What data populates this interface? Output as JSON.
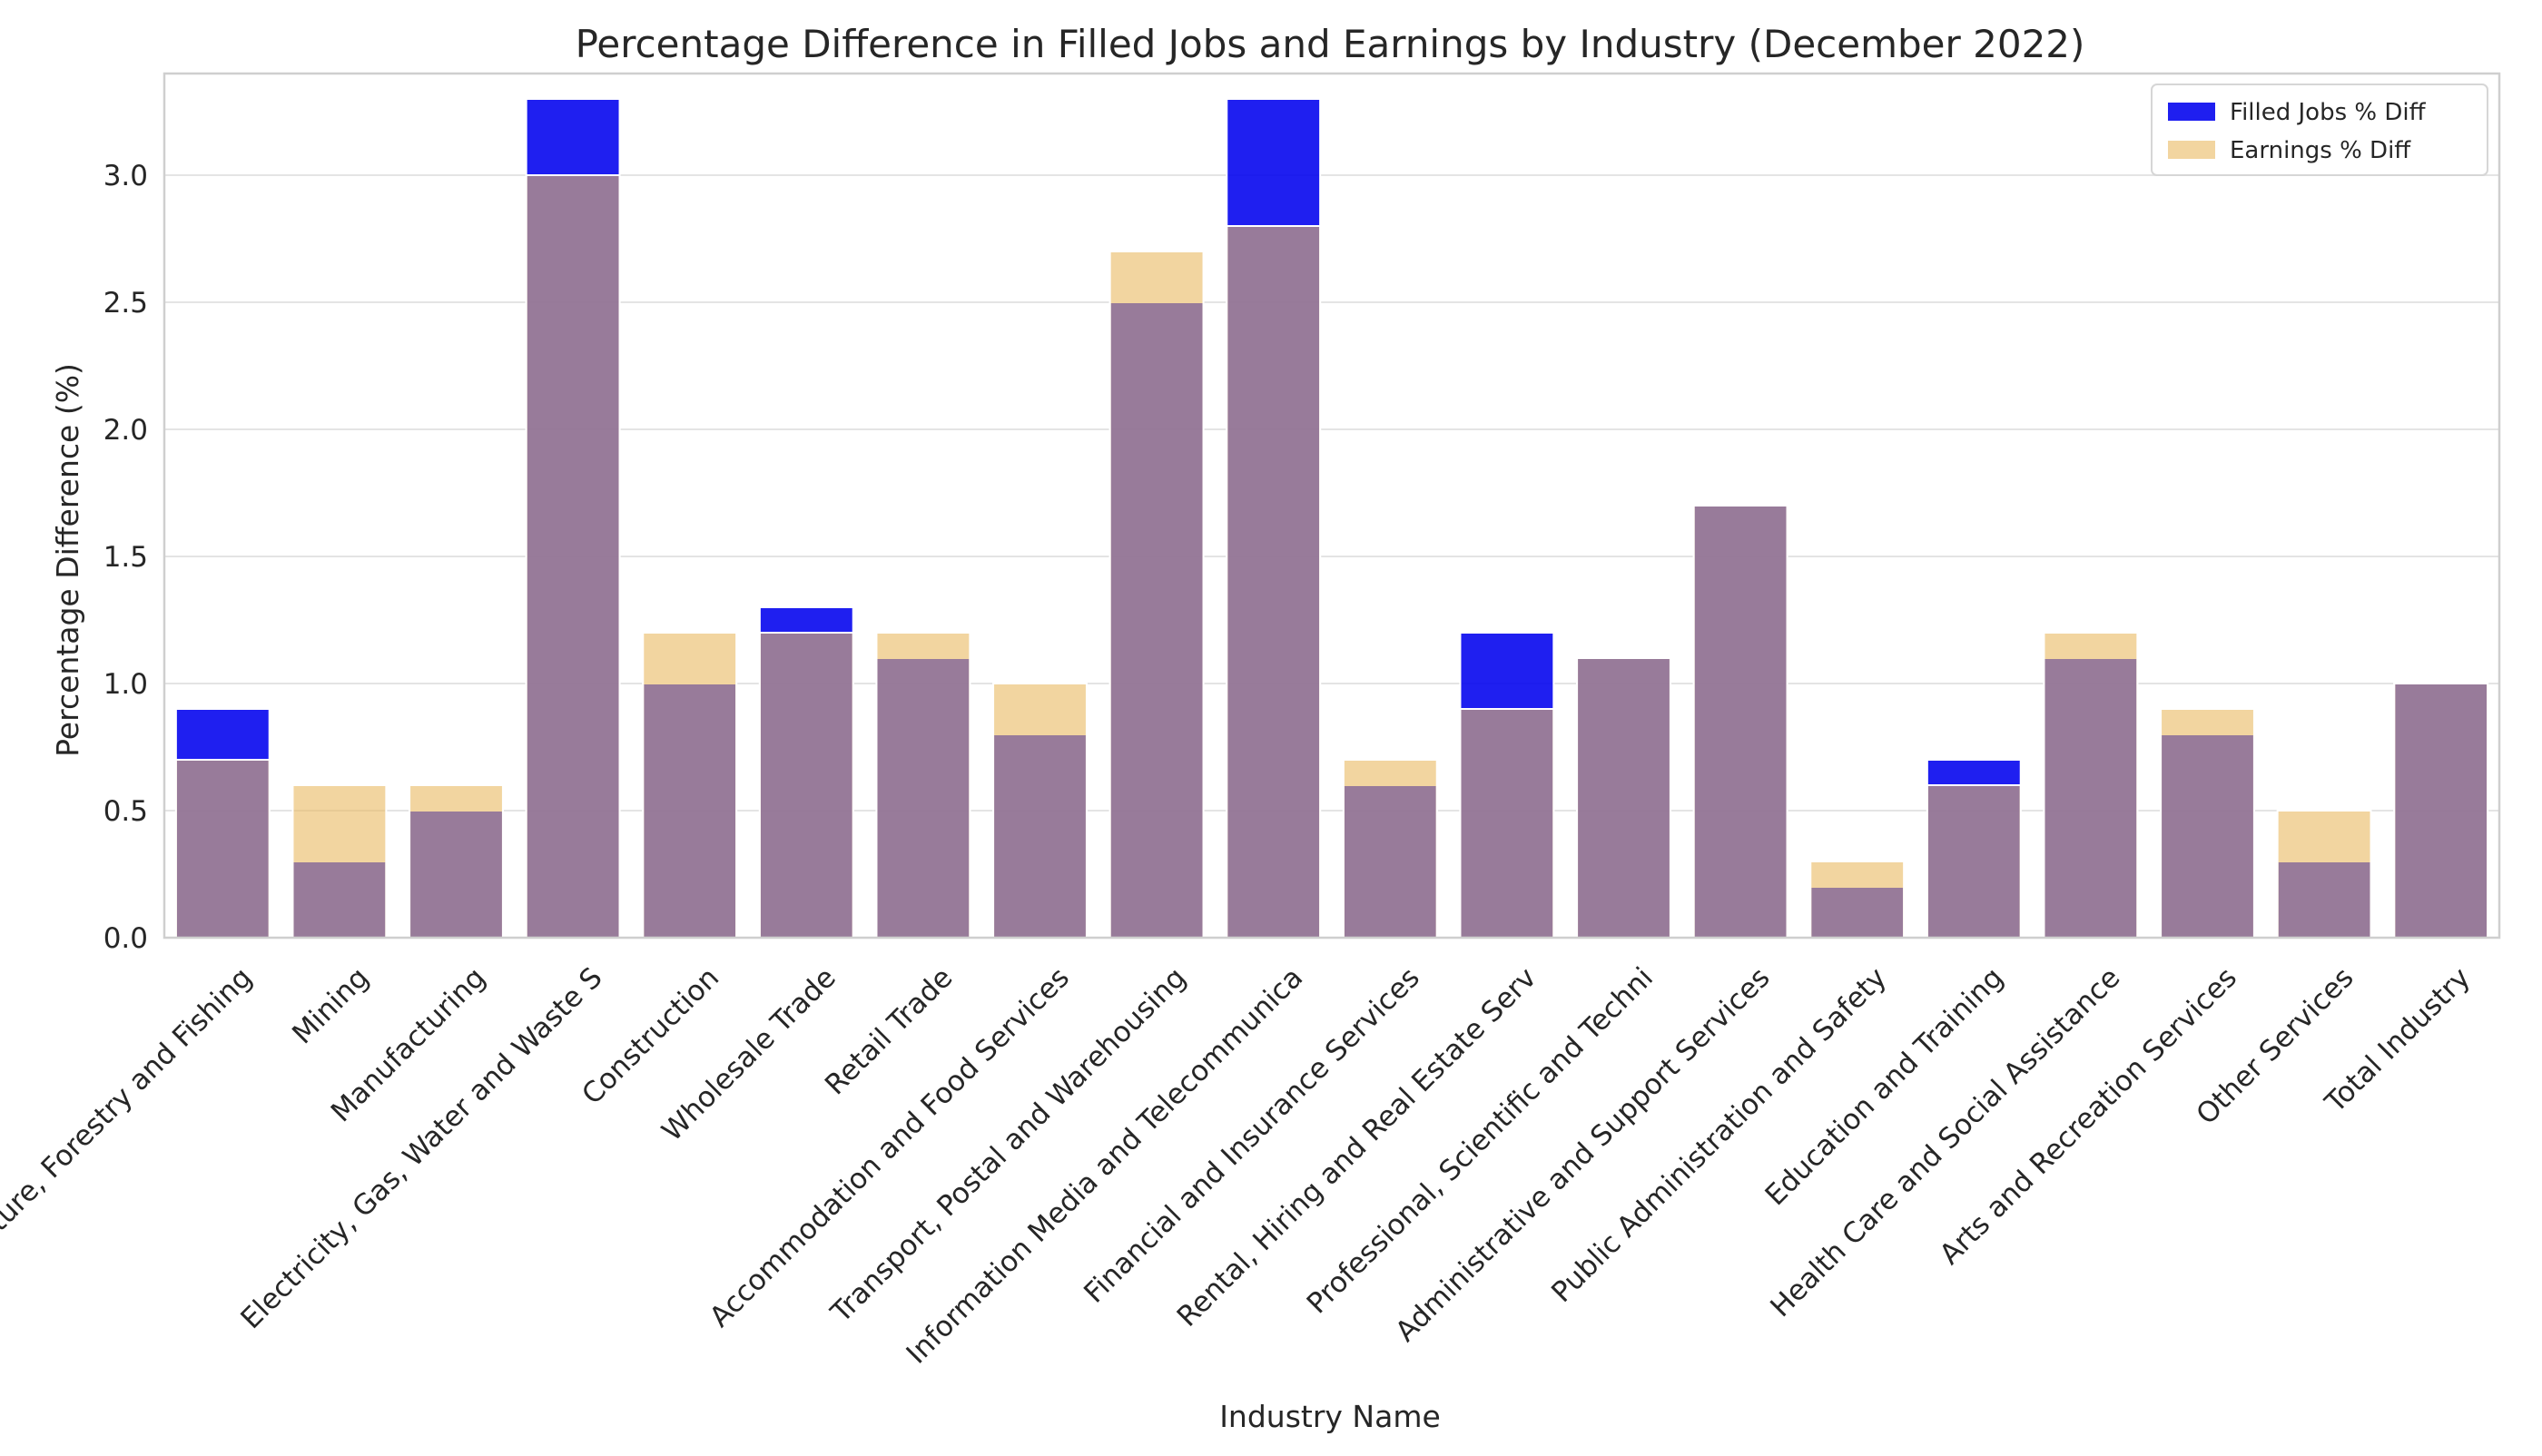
{
  "chart_data": {
    "type": "bar",
    "title": "Percentage Difference in Filled Jobs and Earnings by Industry (December 2022)",
    "xlabel": "Industry Name",
    "ylabel": "Percentage Difference (%)",
    "ylim": [
      0,
      3.4
    ],
    "yticks": [
      "0.0",
      "0.5",
      "1.0",
      "1.5",
      "2.0",
      "2.5",
      "3.0"
    ],
    "grid": true,
    "legend_position": "top-right",
    "categories": [
      "Agriculture, Forestry and Fishing",
      "Mining",
      "Manufacturing",
      "Electricity, Gas, Water and Waste S",
      "Construction",
      "Wholesale Trade",
      "Retail Trade",
      "Accommodation and Food Services",
      "Transport, Postal and Warehousing",
      "Information Media and Telecommunica",
      "Financial and Insurance Services",
      "Rental, Hiring and Real Estate Serv",
      "Professional, Scientific and Techni",
      "Administrative and Support Services",
      "Public Administration and Safety",
      "Education and Training",
      "Health Care and Social Assistance",
      "Arts and Recreation Services",
      "Other Services",
      "Total Industry"
    ],
    "series": [
      {
        "name": "Filled Jobs % Diff",
        "color": "#0000ee",
        "opacity": 0.88,
        "values": [
          0.9,
          0.3,
          0.5,
          3.3,
          1.0,
          1.3,
          1.1,
          0.8,
          2.5,
          3.3,
          0.6,
          1.2,
          1.1,
          1.7,
          0.2,
          0.7,
          1.1,
          0.8,
          0.3,
          1.0
        ]
      },
      {
        "name": "Earnings % Diff",
        "color": "#eab960",
        "opacity": 0.6,
        "values": [
          0.7,
          0.6,
          0.6,
          3.0,
          1.2,
          1.2,
          1.2,
          1.0,
          2.7,
          2.8,
          0.7,
          0.9,
          1.1,
          1.7,
          0.3,
          0.6,
          1.2,
          0.9,
          0.5,
          1.0
        ]
      }
    ]
  }
}
